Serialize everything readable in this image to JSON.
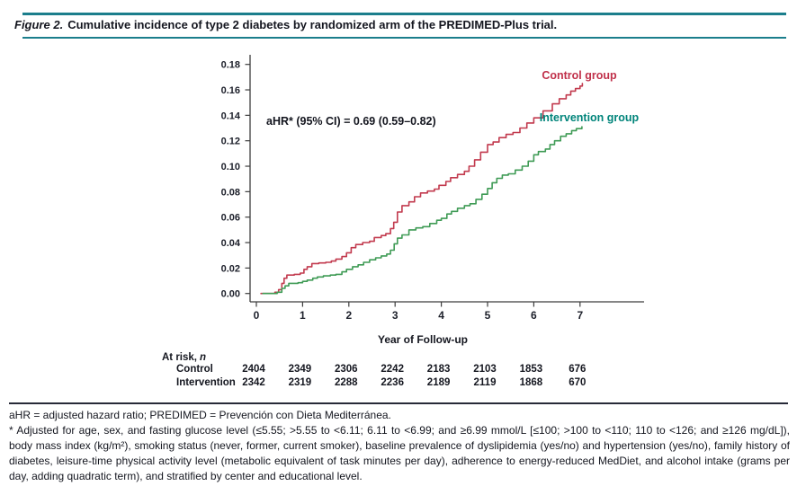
{
  "figure": {
    "label": "Figure 2.",
    "title": "Cumulative incidence of type 2 diabetes by randomized arm of the PREDIMED-Plus trial."
  },
  "chart_data": {
    "type": "line",
    "subtype": "kaplan-meier-cumulative-incidence",
    "title": "",
    "xlabel": "Year of Follow-up",
    "ylabel": "",
    "xlim": [
      0,
      8.4
    ],
    "ylim": [
      0,
      0.18
    ],
    "xticks": [
      0,
      1,
      2,
      3,
      4,
      5,
      6,
      7
    ],
    "yticks": [
      0.0,
      0.02,
      0.04,
      0.06,
      0.08,
      0.1,
      0.12,
      0.14,
      0.16,
      0.18
    ],
    "grid": false,
    "legend_position": "labels-at-curve-ends",
    "annotation": "aHR* (95% CI) = 0.69 (0.59–0.82)",
    "axis_color": "#3d3d3d",
    "series": [
      {
        "name": "Control group",
        "color": "#c23a4e",
        "label_color": "#c0304a",
        "points": [
          [
            0.1,
            0.0
          ],
          [
            0.4,
            0.001
          ],
          [
            0.48,
            0.003
          ],
          [
            0.55,
            0.008
          ],
          [
            0.6,
            0.012
          ],
          [
            0.66,
            0.0145
          ],
          [
            0.82,
            0.015
          ],
          [
            0.95,
            0.016
          ],
          [
            1.03,
            0.019
          ],
          [
            1.1,
            0.021
          ],
          [
            1.2,
            0.0235
          ],
          [
            1.35,
            0.024
          ],
          [
            1.5,
            0.0245
          ],
          [
            1.62,
            0.0255
          ],
          [
            1.72,
            0.027
          ],
          [
            1.85,
            0.029
          ],
          [
            1.95,
            0.032
          ],
          [
            2.05,
            0.036
          ],
          [
            2.15,
            0.0385
          ],
          [
            2.3,
            0.04
          ],
          [
            2.45,
            0.041
          ],
          [
            2.55,
            0.044
          ],
          [
            2.7,
            0.0455
          ],
          [
            2.8,
            0.047
          ],
          [
            2.9,
            0.051
          ],
          [
            2.97,
            0.056
          ],
          [
            3.05,
            0.064
          ],
          [
            3.15,
            0.069
          ],
          [
            3.3,
            0.072
          ],
          [
            3.42,
            0.076
          ],
          [
            3.55,
            0.079
          ],
          [
            3.7,
            0.0805
          ],
          [
            3.85,
            0.082
          ],
          [
            3.95,
            0.085
          ],
          [
            4.1,
            0.088
          ],
          [
            4.2,
            0.091
          ],
          [
            4.35,
            0.0935
          ],
          [
            4.5,
            0.096
          ],
          [
            4.6,
            0.1
          ],
          [
            4.72,
            0.105
          ],
          [
            4.85,
            0.111
          ],
          [
            5.0,
            0.117
          ],
          [
            5.12,
            0.119
          ],
          [
            5.25,
            0.1225
          ],
          [
            5.4,
            0.125
          ],
          [
            5.55,
            0.1265
          ],
          [
            5.7,
            0.13
          ],
          [
            5.85,
            0.134
          ],
          [
            6.0,
            0.138
          ],
          [
            6.2,
            0.1435
          ],
          [
            6.4,
            0.149
          ],
          [
            6.55,
            0.153
          ],
          [
            6.7,
            0.156
          ],
          [
            6.8,
            0.159
          ],
          [
            6.9,
            0.161
          ],
          [
            7.0,
            0.163
          ],
          [
            7.05,
            0.165
          ]
        ]
      },
      {
        "name": "Intervention group",
        "color": "#3f9b55",
        "label_color": "#00847a",
        "points": [
          [
            0.14,
            0.0
          ],
          [
            0.45,
            0.001
          ],
          [
            0.55,
            0.004
          ],
          [
            0.62,
            0.006
          ],
          [
            0.7,
            0.008
          ],
          [
            0.9,
            0.0085
          ],
          [
            1.0,
            0.0095
          ],
          [
            1.1,
            0.0105
          ],
          [
            1.22,
            0.012
          ],
          [
            1.32,
            0.013
          ],
          [
            1.45,
            0.0138
          ],
          [
            1.6,
            0.0145
          ],
          [
            1.72,
            0.015
          ],
          [
            1.85,
            0.017
          ],
          [
            1.95,
            0.019
          ],
          [
            2.08,
            0.021
          ],
          [
            2.2,
            0.0225
          ],
          [
            2.32,
            0.0245
          ],
          [
            2.45,
            0.0265
          ],
          [
            2.58,
            0.028
          ],
          [
            2.7,
            0.0295
          ],
          [
            2.82,
            0.031
          ],
          [
            2.9,
            0.034
          ],
          [
            2.98,
            0.039
          ],
          [
            3.05,
            0.0435
          ],
          [
            3.15,
            0.046
          ],
          [
            3.3,
            0.05
          ],
          [
            3.45,
            0.0515
          ],
          [
            3.6,
            0.0525
          ],
          [
            3.75,
            0.055
          ],
          [
            3.9,
            0.0575
          ],
          [
            4.0,
            0.059
          ],
          [
            4.12,
            0.0625
          ],
          [
            4.22,
            0.0645
          ],
          [
            4.35,
            0.067
          ],
          [
            4.5,
            0.069
          ],
          [
            4.62,
            0.0705
          ],
          [
            4.75,
            0.074
          ],
          [
            4.88,
            0.078
          ],
          [
            5.0,
            0.0825
          ],
          [
            5.1,
            0.087
          ],
          [
            5.2,
            0.0905
          ],
          [
            5.32,
            0.093
          ],
          [
            5.45,
            0.094
          ],
          [
            5.6,
            0.097
          ],
          [
            5.75,
            0.1
          ],
          [
            5.88,
            0.104
          ],
          [
            6.0,
            0.109
          ],
          [
            6.1,
            0.1115
          ],
          [
            6.25,
            0.1135
          ],
          [
            6.35,
            0.117
          ],
          [
            6.45,
            0.12
          ],
          [
            6.58,
            0.1235
          ],
          [
            6.7,
            0.1255
          ],
          [
            6.82,
            0.128
          ],
          [
            6.92,
            0.1295
          ],
          [
            7.04,
            0.131
          ]
        ]
      }
    ]
  },
  "risk_table": {
    "header": {
      "prefix": "At risk,",
      "suffix": "n"
    },
    "rows": [
      {
        "label": "Control",
        "values": [
          "2404",
          "2349",
          "2306",
          "2242",
          "2183",
          "2103",
          "1853",
          "676"
        ]
      },
      {
        "label": "Intervention",
        "values": [
          "2342",
          "2319",
          "2288",
          "2236",
          "2189",
          "2119",
          "1868",
          "670"
        ]
      }
    ]
  },
  "footnotes": {
    "abbreviations": "aHR = adjusted hazard ratio; PREDIMED = Prevención con Dieta Mediterránea.",
    "adjustment": "* Adjusted for age, sex, and fasting glucose level (≤5.55; >5.55 to <6.11; 6.11 to <6.99; and ≥6.99 mmol/L [≤100; >100 to <110; 110 to <126; and ≥126 mg/dL]), body mass index (kg/m²), smoking status (never, former, current smoker), baseline prevalence of dyslipidemia (yes/no) and hypertension (yes/no), family history of diabetes, leisure-time physical activity level (metabolic equivalent of task minutes per day), adherence to energy-reduced MedDiet, and alcohol intake (grams per day, adding quadratic term), and stratified by center and educational level."
  }
}
